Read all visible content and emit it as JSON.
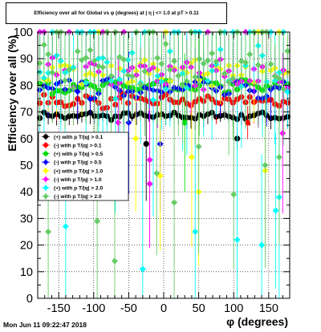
{
  "chart_data": {
    "type": "scatter",
    "title": "Efficiency over all for Global vs φ (degrees) at | η | <= 1.0 at pT > 0.11",
    "xlabel": "φ (degrees)",
    "ylabel": "Efficiency over all (%)",
    "xlim": [
      -180,
      180
    ],
    "ylim": [
      0,
      100
    ],
    "x_ticks": [
      "-150",
      "-100",
      "-50",
      "0",
      "50",
      "100",
      "150"
    ],
    "y_ticks": [
      "0",
      "10",
      "20",
      "30",
      "40",
      "50",
      "60",
      "70",
      "80",
      "90",
      "100"
    ],
    "grid": true,
    "legend_position": "left-center",
    "series": [
      {
        "name": "(+) with p T/|q| > 0.1",
        "color": "#000000",
        "marker": "circle",
        "level": 68.5,
        "spread": 1.0,
        "outliers": [
          [
            -25,
            58
          ],
          [
            105,
            60
          ]
        ]
      },
      {
        "name": "(-) with p T/|q| > 0.1",
        "color": "#ff0000",
        "marker": "circle",
        "level": 74.0,
        "spread": 1.8,
        "outliers": [
          [
            -60,
            77
          ],
          [
            120,
            66
          ]
        ]
      },
      {
        "name": "(+) with p T/|q| > 0.5",
        "color": "#00dd00",
        "marker": "circle",
        "level": 79.5,
        "spread": 2.0,
        "outliers": [
          [
            30,
            66
          ]
        ]
      },
      {
        "name": "(-) with p T/|q| > 0.5",
        "color": "#0000ff",
        "marker": "diamond",
        "level": 79.0,
        "spread": 2.8,
        "outliers": [
          [
            -5,
            58
          ],
          [
            -50,
            66
          ]
        ]
      },
      {
        "name": "(+) with p T/|q| > 1.0",
        "color": "#ffff00",
        "marker": "diamond",
        "level": 85.0,
        "spread": 3.5,
        "outliers": [
          [
            -40,
            60
          ],
          [
            -5,
            46
          ],
          [
            40,
            53
          ],
          [
            50,
            40
          ],
          [
            145,
            48
          ]
        ]
      },
      {
        "name": "(-) with p T/|q| > 1.0",
        "color": "#ff00ff",
        "marker": "diamond",
        "level": 84.5,
        "spread": 4.0,
        "outliers": [
          [
            -20,
            43
          ],
          [
            -20,
            52
          ],
          [
            -65,
            66
          ],
          [
            170,
            62
          ]
        ]
      },
      {
        "name": "(+) with p T/|q| > 2.0",
        "color": "#00ffff",
        "marker": "diamond",
        "level": 85.0,
        "spread": 7.0,
        "outliers": [
          [
            -140,
            27
          ],
          [
            -30,
            11
          ],
          [
            45,
            25
          ],
          [
            105,
            22
          ],
          [
            140,
            20
          ],
          [
            160,
            33
          ],
          [
            165,
            38
          ]
        ]
      },
      {
        "name": "(-) with p T/|q| > 2.0",
        "color": "#66cc66",
        "marker": "diamond",
        "level": 86.0,
        "spread": 6.5,
        "outliers": [
          [
            -165,
            25
          ],
          [
            -95,
            29
          ],
          [
            -70,
            14
          ],
          [
            -10,
            47
          ],
          [
            15,
            36
          ],
          [
            50,
            57
          ],
          [
            100,
            39
          ],
          [
            145,
            50
          ],
          [
            165,
            53
          ]
        ]
      }
    ]
  },
  "timestamp": "Mon Jun 11 09:22:47 2018"
}
